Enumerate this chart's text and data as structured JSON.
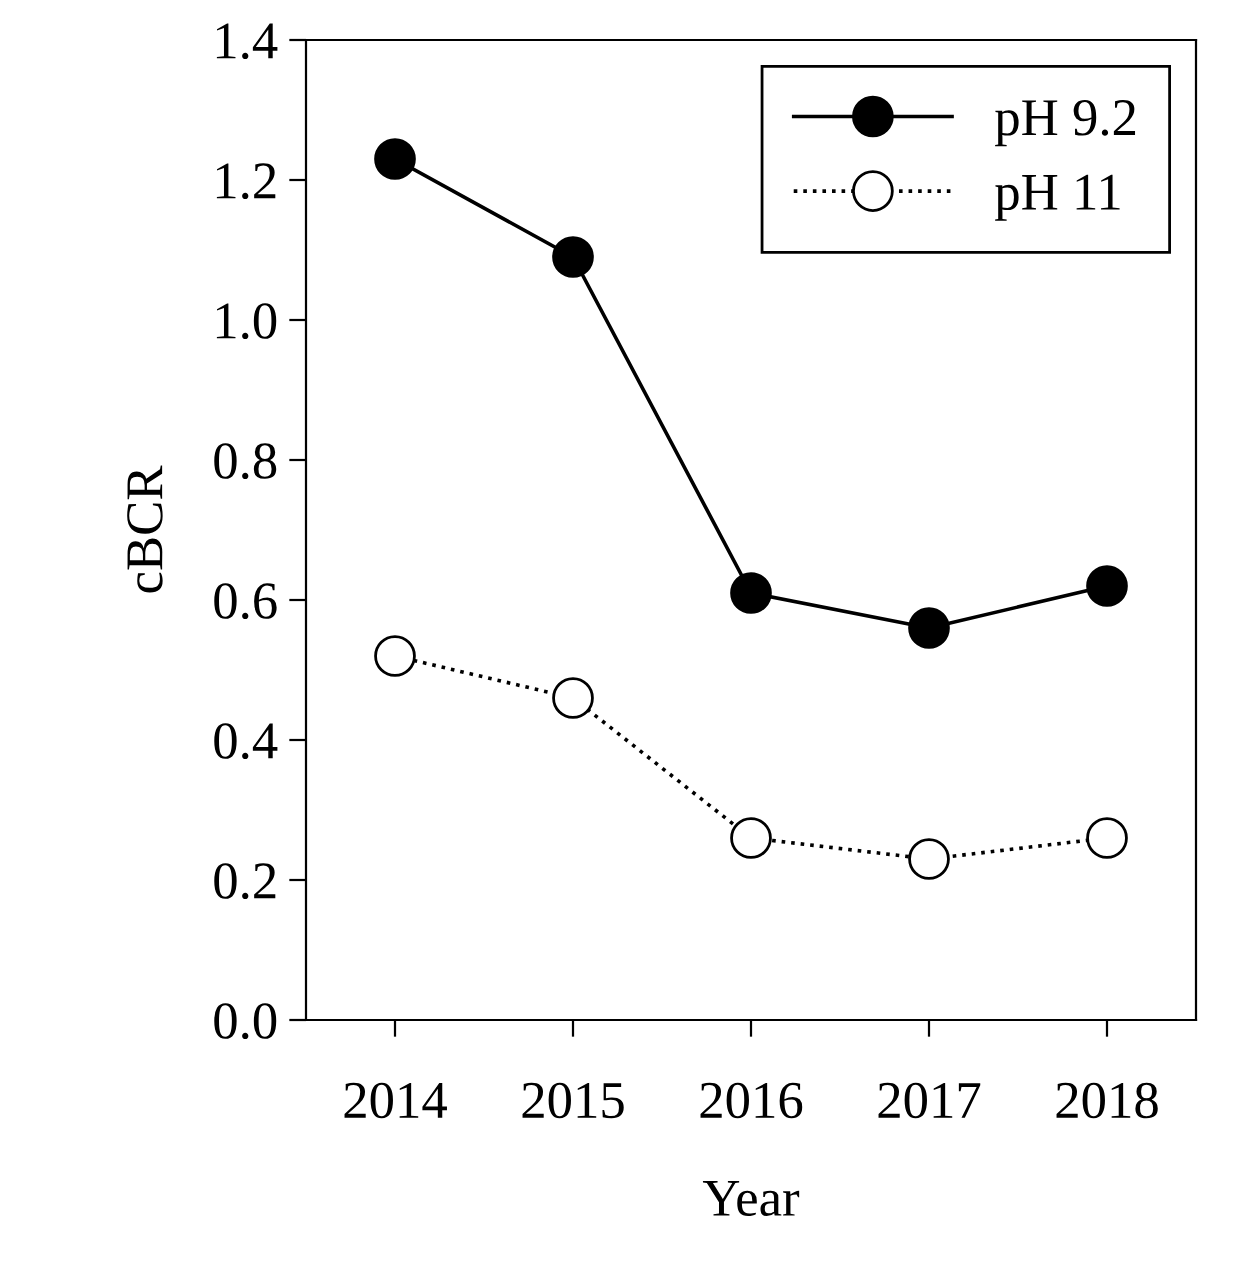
{
  "chart_data": {
    "type": "line",
    "xlabel": "Year",
    "ylabel": "cBCR",
    "x": [
      2014,
      2015,
      2016,
      2017,
      2018
    ],
    "series": [
      {
        "name": "pH 9.2",
        "color": "#000000",
        "values": [
          1.23,
          1.09,
          0.61,
          0.56,
          0.62
        ],
        "marker": "circle",
        "line_style": "solid"
      },
      {
        "name": "pH 11",
        "color": "#000000",
        "values": [
          0.52,
          0.46,
          0.26,
          0.23,
          0.26
        ],
        "marker": "circle",
        "line_style": "dotted"
      }
    ],
    "xlim": [
      2013.5,
      2018.5
    ],
    "xticks": [
      2014,
      2015,
      2016,
      2017,
      2018
    ],
    "ylim": [
      0,
      1.4
    ],
    "yticks": [
      {
        "value": 0,
        "label": "0.0"
      },
      {
        "value": 0.2,
        "label": "0.2"
      },
      {
        "value": 0.4,
        "label": "0.4"
      },
      {
        "value": 0.6,
        "label": "0.6"
      },
      {
        "value": 0.8,
        "label": "0.8"
      },
      {
        "value": 1.0,
        "label": "1.0"
      },
      {
        "value": 1.2,
        "label": "1.2"
      },
      {
        "value": 1.4,
        "label": "1.4"
      }
    ],
    "legend": "top right",
    "grid": false
  }
}
